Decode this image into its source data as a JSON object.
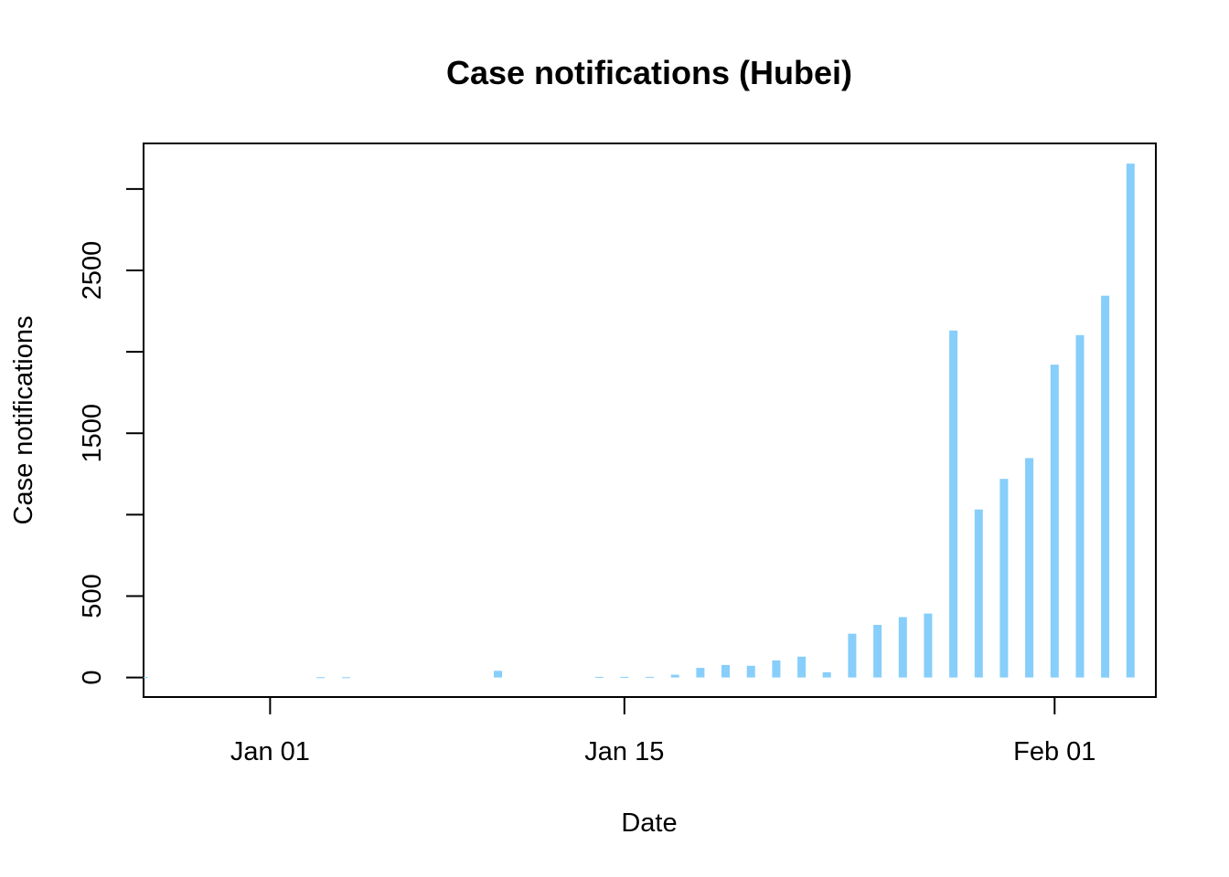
{
  "chart_data": {
    "type": "bar",
    "title": "Case notifications (Hubei)",
    "xlabel": "Date",
    "ylabel": "Case notifications",
    "bar_color": "#87CEFA",
    "grid": false,
    "legend": "none",
    "xlim": [
      "2019-12-27",
      "2020-02-05"
    ],
    "ylim": [
      -120,
      3280
    ],
    "x_ticks": [
      {
        "date": "2020-01-01",
        "label": "Jan 01"
      },
      {
        "date": "2020-01-15",
        "label": "Jan 15"
      },
      {
        "date": "2020-02-01",
        "label": "Feb 01"
      }
    ],
    "y_ticks": [
      0,
      500,
      1000,
      1500,
      2000,
      2500,
      3000
    ],
    "y_tick_labels": [
      {
        "value": 0,
        "label": "0"
      },
      {
        "value": 500,
        "label": "500"
      },
      {
        "value": 1500,
        "label": "1500"
      },
      {
        "value": 2500,
        "label": "2500"
      }
    ],
    "series": [
      {
        "x": [
          "2019-12-27",
          "2020-01-03",
          "2020-01-04",
          "2020-01-10",
          "2020-01-14",
          "2020-01-15",
          "2020-01-16",
          "2020-01-17",
          "2020-01-18",
          "2020-01-19",
          "2020-01-20",
          "2020-01-21",
          "2020-01-22",
          "2020-01-23",
          "2020-01-24",
          "2020-01-25",
          "2020-01-26",
          "2020-01-27",
          "2020-01-28",
          "2020-01-29",
          "2020-01-30",
          "2020-01-31",
          "2020-02-01",
          "2020-02-02",
          "2020-02-03",
          "2020-02-04"
        ],
        "values": [
          3,
          2,
          2,
          41,
          4,
          4,
          4,
          17,
          59,
          77,
          72,
          105,
          128,
          32,
          269,
          323,
          371,
          393,
          2131,
          1032,
          1220,
          1347,
          1921,
          2103,
          2345,
          3156
        ]
      }
    ]
  }
}
